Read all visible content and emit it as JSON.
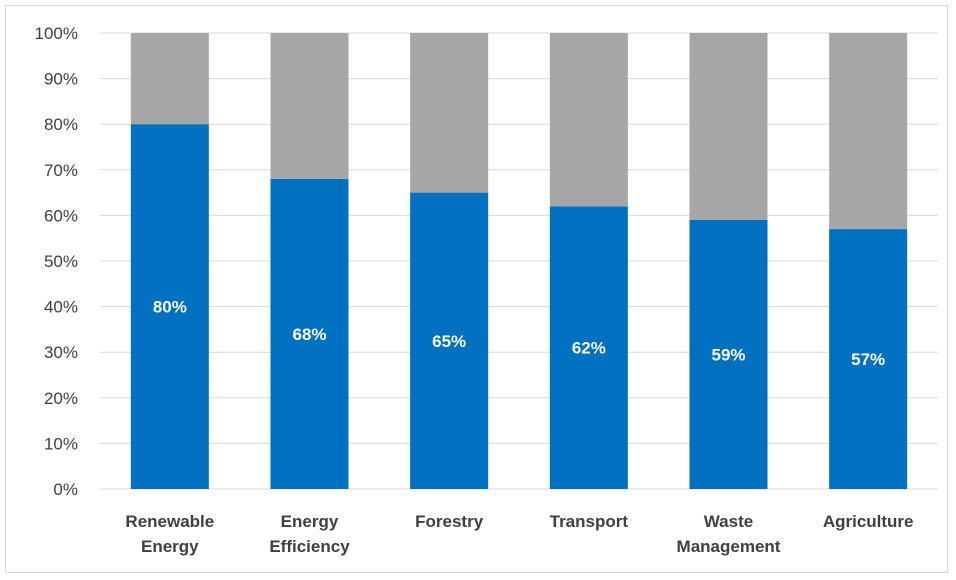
{
  "chart_data": {
    "type": "bar",
    "stacked": "percent",
    "title": "",
    "xlabel": "",
    "ylabel": "",
    "ylim": [
      0,
      100
    ],
    "y_tick_labels": [
      "0%",
      "10%",
      "20%",
      "30%",
      "40%",
      "50%",
      "60%",
      "70%",
      "80%",
      "90%",
      "100%"
    ],
    "grid": true,
    "legend": "none",
    "categories": [
      [
        "Renewable",
        "Energy"
      ],
      [
        "Energy",
        "Efficiency"
      ],
      [
        "Forestry"
      ],
      [
        "Transport"
      ],
      [
        "Waste",
        "Management"
      ],
      [
        "Agriculture"
      ]
    ],
    "series": [
      {
        "values": [
          80,
          68,
          65,
          62,
          59,
          57
        ],
        "color": "#0070c0",
        "data_labels": [
          "80%",
          "68%",
          "65%",
          "62%",
          "59%",
          "57%"
        ]
      },
      {
        "values": [
          20,
          32,
          35,
          38,
          41,
          43
        ],
        "color": "#a6a6a6"
      }
    ],
    "gridline_color": "#d9d9d9"
  }
}
